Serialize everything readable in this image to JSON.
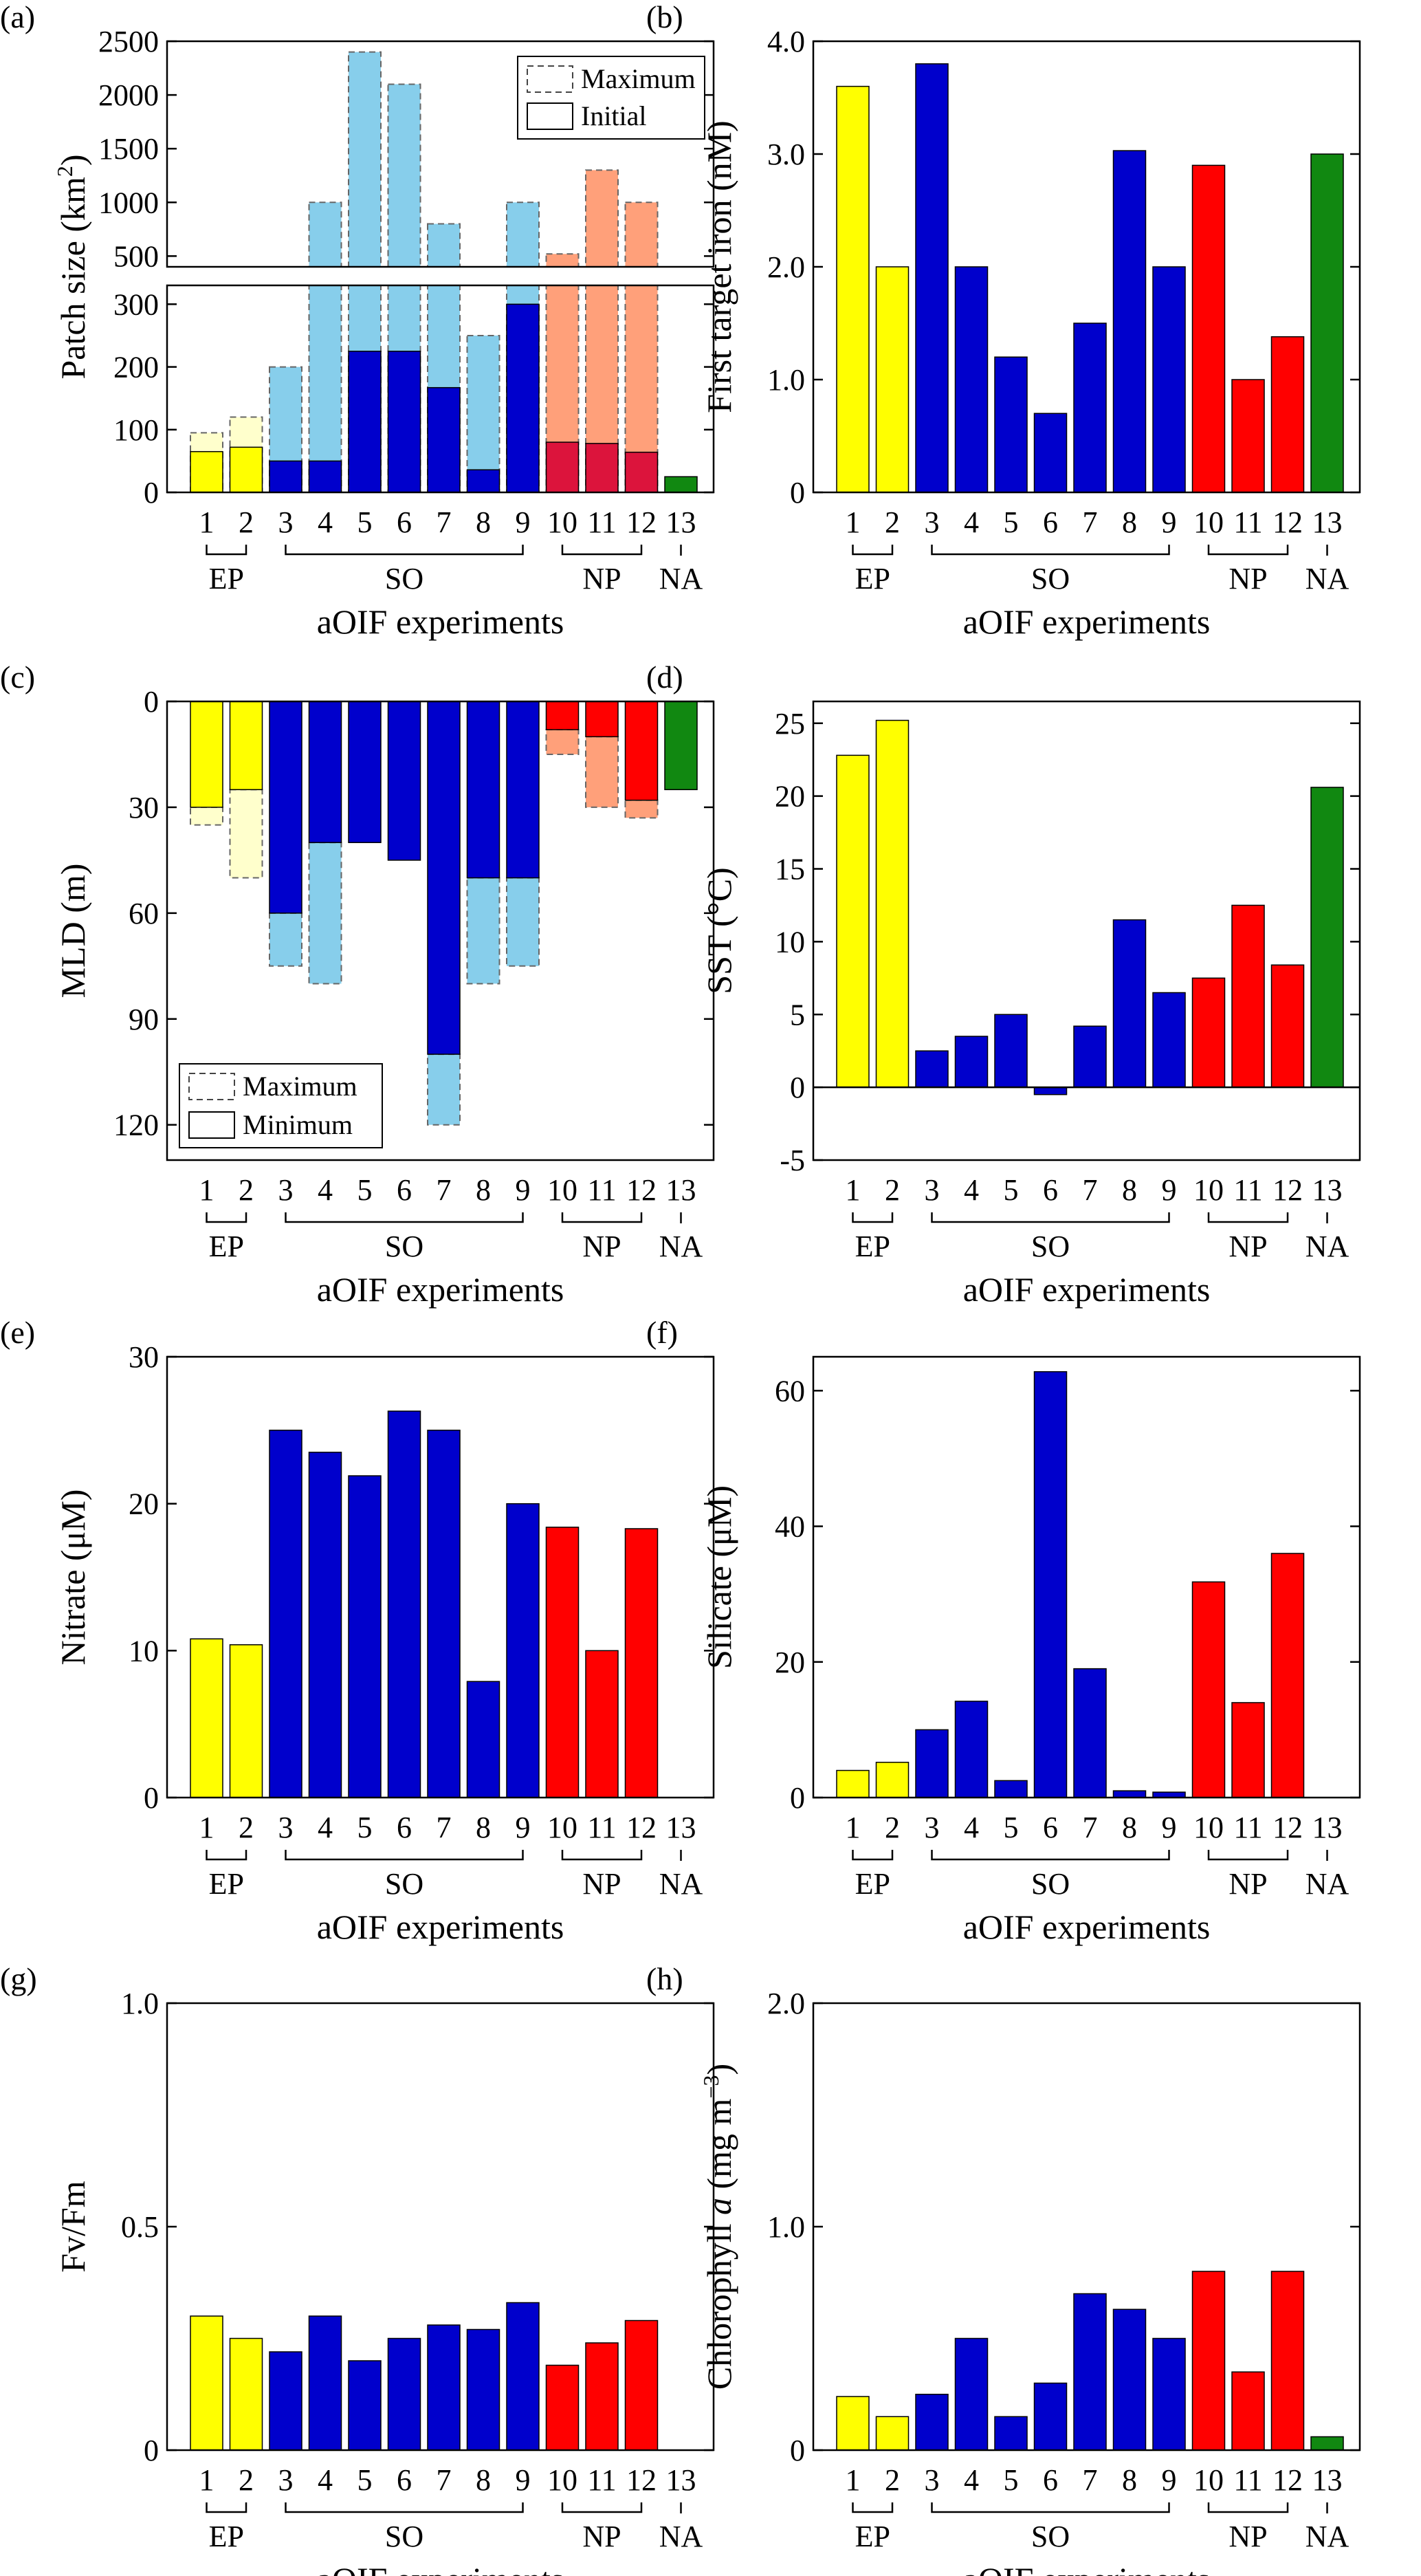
{
  "colors": {
    "EP": "#ffff00",
    "EP_light": "#ffffcc",
    "SO": "#0000cc",
    "SO_light": "#87ceeb",
    "NP": "#ff0000",
    "NP_light": "#ffa07a",
    "NP_dark": "#dc143c",
    "NA": "#118811"
  },
  "xlabel": "aOIF experiments",
  "experiments": [
    "1",
    "2",
    "3",
    "4",
    "5",
    "6",
    "7",
    "8",
    "9",
    "10",
    "11",
    "12",
    "13"
  ],
  "groups": [
    {
      "label": "EP",
      "first": 1,
      "last": 2
    },
    {
      "label": "SO",
      "first": 3,
      "last": 9
    },
    {
      "label": "NP",
      "first": 10,
      "last": 12
    },
    {
      "label": "NA",
      "first": 13,
      "last": 13
    }
  ],
  "chart_data": [
    {
      "id": "a",
      "panel_label": "(a)",
      "type": "bar",
      "title": "",
      "ylabel": "Patch size (km²)",
      "ylabel_main": "Patch size (km",
      "ylabel_sup": "2",
      "ylabel_end": ")",
      "broken_axis": true,
      "upper_ylim": [
        400,
        2500
      ],
      "upper_ticks": [
        "500",
        "1000",
        "1500",
        "2000",
        "2500"
      ],
      "upper_tick_values": [
        500,
        1000,
        1500,
        2000,
        2500
      ],
      "lower_ylim": [
        0,
        330
      ],
      "lower_ticks": [
        "0",
        "100",
        "200",
        "300"
      ],
      "lower_tick_values": [
        0,
        100,
        200,
        300
      ],
      "legend": [
        "Maximum",
        "Initial"
      ],
      "legend_position": "top-right",
      "series": [
        {
          "name": "Maximum",
          "values": [
            95,
            120,
            200,
            1000,
            2400,
            2100,
            800,
            250,
            1000,
            520,
            1300,
            1000,
            null
          ]
        },
        {
          "name": "Initial",
          "values": [
            65,
            72,
            50,
            50,
            225,
            225,
            167,
            36,
            300,
            80,
            78,
            64,
            25
          ]
        }
      ]
    },
    {
      "id": "b",
      "panel_label": "(b)",
      "type": "bar",
      "title": "",
      "ylabel": "First target iron (nM)",
      "ylim": [
        0,
        4
      ],
      "ticks": [
        "0",
        "1.0",
        "2.0",
        "3.0",
        "4.0"
      ],
      "tick_values": [
        0,
        1,
        2,
        3,
        4
      ],
      "series": [
        {
          "name": "First target iron",
          "values": [
            3.6,
            2.0,
            3.8,
            2.0,
            1.2,
            0.7,
            1.5,
            3.03,
            2.0,
            2.9,
            1.0,
            1.38,
            3.0
          ]
        }
      ]
    },
    {
      "id": "c",
      "panel_label": "(c)",
      "type": "bar",
      "title": "",
      "ylabel": "MLD (m)",
      "inverted": true,
      "ylim": [
        0,
        130
      ],
      "ticks": [
        "0",
        "30",
        "60",
        "90",
        "120"
      ],
      "tick_values": [
        0,
        30,
        60,
        90,
        120
      ],
      "legend": [
        "Maximum",
        "Minimum"
      ],
      "legend_position": "bottom-left",
      "series": [
        {
          "name": "Maximum",
          "values": [
            35,
            50,
            75,
            80,
            40,
            45,
            120,
            80,
            75,
            15,
            30,
            33,
            25
          ]
        },
        {
          "name": "Minimum",
          "values": [
            30,
            25,
            60,
            40,
            40,
            45,
            100,
            50,
            50,
            8,
            10,
            28,
            25
          ]
        }
      ]
    },
    {
      "id": "d",
      "panel_label": "(d)",
      "type": "bar",
      "title": "",
      "ylabel": "SST (°C)",
      "ylim": [
        -5,
        26.5
      ],
      "ticks": [
        "-5",
        "0",
        "5",
        "10",
        "15",
        "20",
        "25"
      ],
      "tick_values": [
        -5,
        0,
        5,
        10,
        15,
        20,
        25
      ],
      "series": [
        {
          "name": "SST",
          "values": [
            22.8,
            25.2,
            2.5,
            3.5,
            5.0,
            -0.5,
            4.2,
            11.5,
            6.5,
            7.5,
            12.5,
            8.4,
            20.6
          ]
        }
      ]
    },
    {
      "id": "e",
      "panel_label": "(e)",
      "type": "bar",
      "title": "",
      "ylabel": "Nitrate  (μM)",
      "ylim": [
        0,
        30
      ],
      "ticks": [
        "0",
        "10",
        "20",
        "30"
      ],
      "tick_values": [
        0,
        10,
        20,
        30
      ],
      "series": [
        {
          "name": "Nitrate",
          "values": [
            10.8,
            10.4,
            25.0,
            23.5,
            21.9,
            26.3,
            25.0,
            7.9,
            20.0,
            18.4,
            10.0,
            18.3,
            null
          ]
        }
      ]
    },
    {
      "id": "f",
      "panel_label": "(f)",
      "type": "bar",
      "title": "",
      "ylabel": "Silicate  (μM)",
      "ylim": [
        0,
        65
      ],
      "ticks": [
        "0",
        "20",
        "40",
        "60"
      ],
      "tick_values": [
        0,
        20,
        40,
        60
      ],
      "series": [
        {
          "name": "Silicate",
          "values": [
            4.0,
            5.2,
            10.0,
            14.2,
            2.5,
            62.8,
            19.0,
            1.0,
            0.8,
            31.8,
            14.0,
            36.0,
            null
          ]
        }
      ]
    },
    {
      "id": "g",
      "panel_label": "(g)",
      "type": "bar",
      "title": "",
      "ylabel": "Fv/Fm",
      "ylim": [
        0,
        1
      ],
      "ticks": [
        "0",
        "0.5",
        "1.0"
      ],
      "tick_values": [
        0,
        0.5,
        1.0
      ],
      "series": [
        {
          "name": "Fv/Fm",
          "values": [
            0.3,
            0.25,
            0.22,
            0.3,
            0.2,
            0.25,
            0.28,
            0.27,
            0.33,
            0.19,
            0.24,
            0.29,
            null
          ]
        }
      ]
    },
    {
      "id": "h",
      "panel_label": "(h)",
      "type": "bar",
      "title": "",
      "ylabel": "Chlorophyll a (mg m⁻³)",
      "ylabel_main": "Chlorophyll ",
      "ylabel_italic": "a",
      "ylabel_mid": "  (mg m",
      "ylabel_sup": "−3",
      "ylabel_end": ")",
      "ylim": [
        0,
        2
      ],
      "ticks": [
        "0",
        "1.0",
        "2.0"
      ],
      "tick_values": [
        0,
        1.0,
        2.0
      ],
      "series": [
        {
          "name": "Chlorophyll a",
          "values": [
            0.24,
            0.15,
            0.25,
            0.5,
            0.15,
            0.3,
            0.7,
            0.63,
            0.5,
            0.8,
            0.35,
            0.8,
            0.06
          ]
        }
      ]
    }
  ]
}
